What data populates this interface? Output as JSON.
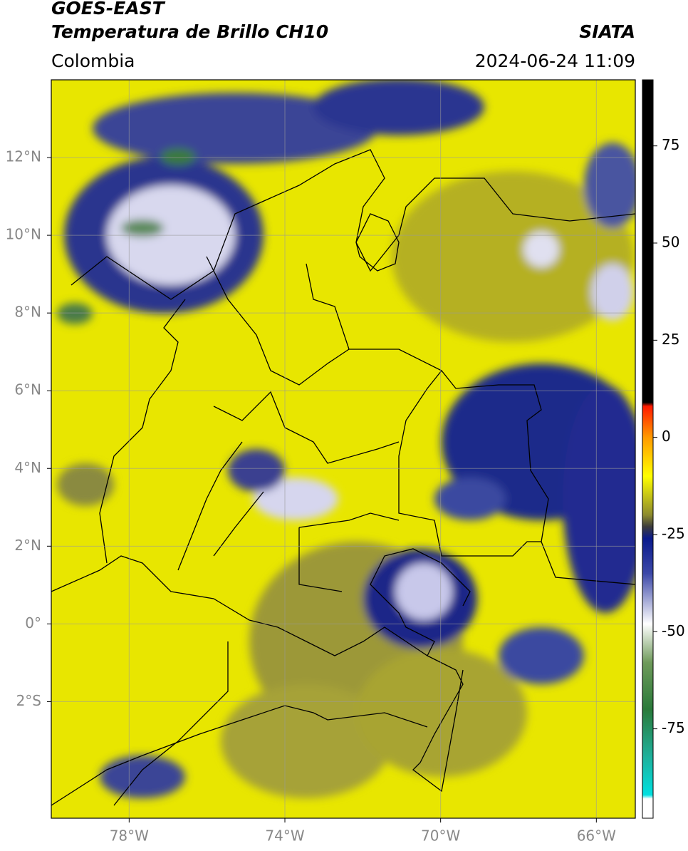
{
  "map": {
    "title": "GOES-EAST",
    "subtitle": "Temperatura de Brillo CH10",
    "source": "SIATA",
    "region": "Colombia",
    "datetime": "2024-06-24 11:09",
    "xlim": [
      -80,
      -65
    ],
    "ylim": [
      -5,
      14
    ],
    "xticks": [
      {
        "value": -78,
        "label": "78°W"
      },
      {
        "value": -74,
        "label": "74°W"
      },
      {
        "value": -70,
        "label": "70°W"
      },
      {
        "value": -66,
        "label": "66°W"
      }
    ],
    "yticks": [
      {
        "value": 12,
        "label": "12°N"
      },
      {
        "value": 10,
        "label": "10°N"
      },
      {
        "value": 8,
        "label": "8°N"
      },
      {
        "value": 6,
        "label": "6°N"
      },
      {
        "value": 4,
        "label": "4°N"
      },
      {
        "value": 2,
        "label": "2°N"
      },
      {
        "value": 0,
        "label": "0°"
      },
      {
        "value": -2,
        "label": "2°S"
      }
    ],
    "grid": true,
    "colorbar": {
      "lim": [
        -98,
        92
      ],
      "ticks": [
        75,
        50,
        25,
        0,
        -25,
        -50,
        -75
      ],
      "stops": [
        {
          "value": 92,
          "color": "#000000"
        },
        {
          "value": 9,
          "color": "#000000"
        },
        {
          "value": 8,
          "color": "#ff1a00"
        },
        {
          "value": 0,
          "color": "#ff9a00"
        },
        {
          "value": -10,
          "color": "#ffff00"
        },
        {
          "value": -20,
          "color": "#8c8a2e"
        },
        {
          "value": -23,
          "color": "#3c3c3c"
        },
        {
          "value": -26,
          "color": "#0a1a8c"
        },
        {
          "value": -35,
          "color": "#3c48a8"
        },
        {
          "value": -48,
          "color": "#ffffff"
        },
        {
          "value": -58,
          "color": "#6e9a5a"
        },
        {
          "value": -70,
          "color": "#2a7a3a"
        },
        {
          "value": -82,
          "color": "#1fb09a"
        },
        {
          "value": -92,
          "color": "#00e0e0"
        },
        {
          "value": -93,
          "color": "#ffffff"
        },
        {
          "value": -98,
          "color": "#ffffff"
        }
      ]
    }
  }
}
